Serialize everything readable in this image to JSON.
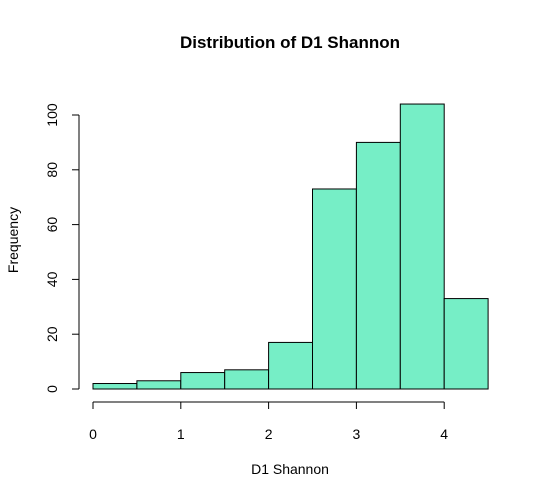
{
  "chart_data": {
    "type": "bar",
    "title": "Distribution of D1 Shannon",
    "xlabel": "D1 Shannon",
    "ylabel": "Frequency",
    "bins": [
      {
        "from": 0.0,
        "to": 0.5,
        "count": 2
      },
      {
        "from": 0.5,
        "to": 1.0,
        "count": 3
      },
      {
        "from": 1.0,
        "to": 1.5,
        "count": 6
      },
      {
        "from": 1.5,
        "to": 2.0,
        "count": 7
      },
      {
        "from": 2.0,
        "to": 2.5,
        "count": 17
      },
      {
        "from": 2.5,
        "to": 3.0,
        "count": 73
      },
      {
        "from": 3.0,
        "to": 3.5,
        "count": 90
      },
      {
        "from": 3.5,
        "to": 4.0,
        "count": 104
      },
      {
        "from": 4.0,
        "to": 4.5,
        "count": 33
      }
    ],
    "xticks": [
      "0",
      "1",
      "2",
      "3",
      "4"
    ],
    "yticks": [
      "0",
      "20",
      "40",
      "60",
      "80",
      "100"
    ],
    "xlim": [
      0,
      4.5
    ],
    "ylim": [
      0,
      104
    ],
    "bar_color": "#76EEC6",
    "grid": false
  }
}
